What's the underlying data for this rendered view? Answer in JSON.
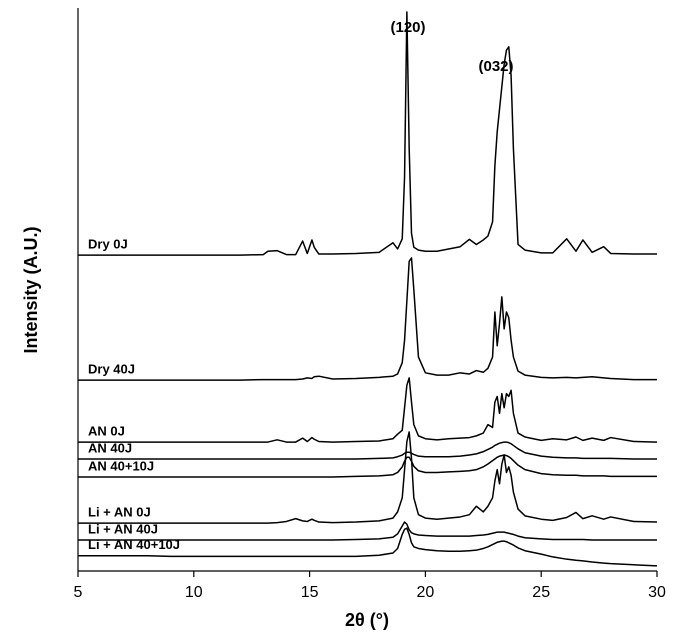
{
  "chart_data": {
    "type": "line",
    "x_label": "2θ (°)",
    "y_label": "Intensity (A.U.)",
    "xlim": [
      5,
      30
    ],
    "xticks": [
      5,
      10,
      15,
      20,
      25,
      30
    ],
    "ylim": [
      0,
      100
    ],
    "annotations": [
      "(120)",
      "(032)"
    ],
    "x": [
      5,
      6,
      7,
      8,
      9,
      10,
      11,
      12,
      13,
      13.2,
      13.6,
      14,
      14.4,
      14.7,
      14.9,
      15.1,
      15.2,
      15.4,
      16,
      17,
      18,
      18.6,
      18.8,
      19.0,
      19.1,
      19.2,
      19.3,
      19.4,
      19.5,
      19.7,
      20,
      20.5,
      21,
      21.5,
      21.9,
      22.2,
      22.5,
      22.7,
      22.9,
      23.0,
      23.1,
      23.2,
      23.3,
      23.4,
      23.5,
      23.6,
      23.7,
      23.8,
      24.0,
      24.3,
      25,
      25.5,
      26.1,
      26.5,
      26.8,
      27.2,
      27.7,
      28,
      29,
      30
    ],
    "series": [
      {
        "name": "Dry 0J",
        "color": "#000000",
        "values": [
          56.1,
          56.1,
          56.1,
          56.1,
          56.1,
          56.1,
          56.1,
          56.1,
          56.2,
          56.8,
          56.9,
          56.2,
          56.2,
          58.6,
          56.4,
          58.8,
          57.5,
          56.3,
          56.3,
          56.4,
          56.6,
          58.3,
          57.2,
          59,
          70,
          99.3,
          75,
          60,
          57.5,
          57,
          56.8,
          56.8,
          57.2,
          57.6,
          58.9,
          58,
          58.8,
          59.5,
          62,
          72,
          78,
          82,
          86,
          90,
          92.5,
          93.1,
          88,
          75,
          58,
          57,
          56.5,
          56.5,
          59,
          56.8,
          58.8,
          56.6,
          57.6,
          56.4,
          56.3,
          56.3
        ]
      },
      {
        "name": "Dry 40J",
        "color": "#000000",
        "values": [
          33.9,
          33.9,
          33.9,
          33.9,
          33.9,
          33.9,
          33.9,
          33.9,
          34.0,
          34,
          34,
          34,
          34,
          34.1,
          34.3,
          34.2,
          34.5,
          34.6,
          34.1,
          34.2,
          34.4,
          34.6,
          35,
          37,
          41,
          48,
          55,
          55.6,
          50,
          38,
          35.2,
          34.8,
          34.8,
          35.2,
          35,
          35.6,
          35.3,
          36,
          38,
          46,
          40,
          44,
          48.7,
          43,
          46,
          45,
          41,
          38,
          35.5,
          34.8,
          34.4,
          34.3,
          34.4,
          34.3,
          34.4,
          34.5,
          34.3,
          34.2,
          34,
          34
        ]
      },
      {
        "name": "AN 0J",
        "color": "#000000",
        "values": [
          22.9,
          22.9,
          22.9,
          22.9,
          22.9,
          22.9,
          22.9,
          22.9,
          22.9,
          22.9,
          23.3,
          22.9,
          22.9,
          23.6,
          23,
          23.7,
          23.4,
          23,
          22.9,
          23,
          23.1,
          23.5,
          24.3,
          25,
          29,
          33,
          34.3,
          30,
          26,
          24,
          23.5,
          23.3,
          23.5,
          23.6,
          23.7,
          24,
          24.5,
          26,
          25.5,
          30,
          31,
          28,
          31.5,
          29,
          31.5,
          31,
          32.1,
          28,
          24.5,
          23.8,
          23.2,
          23.5,
          23.3,
          23.8,
          23.2,
          23.6,
          23.2,
          23.7,
          23,
          22.9
        ]
      },
      {
        "name": "AN 40J",
        "color": "#000000",
        "values": [
          19.9,
          19.9,
          19.9,
          19.9,
          19.9,
          19.9,
          19.9,
          19.9,
          19.9,
          19.9,
          19.9,
          19.9,
          19.9,
          19.9,
          19.9,
          19.9,
          19.9,
          19.9,
          19.9,
          19.9,
          20,
          20.1,
          20.3,
          20.6,
          20.9,
          21.1,
          21.1,
          20.9,
          20.7,
          20.4,
          20.3,
          20.3,
          20.3,
          20.4,
          20.6,
          20.8,
          21.2,
          21.6,
          22,
          22.3,
          22.5,
          22.7,
          22.8,
          22.9,
          22.9,
          22.8,
          22.6,
          22.3,
          21.7,
          21,
          20.4,
          20.2,
          20.1,
          20.1,
          20,
          20,
          20,
          20,
          19.9,
          19.9
        ]
      },
      {
        "name": "AN 40+10J",
        "color": "#000000",
        "values": [
          16.7,
          16.7,
          16.7,
          16.7,
          16.7,
          16.7,
          16.7,
          16.7,
          16.7,
          16.7,
          16.7,
          16.7,
          16.7,
          16.7,
          16.7,
          16.7,
          16.7,
          16.7,
          16.7,
          16.8,
          16.9,
          17.1,
          17.5,
          18.5,
          19.5,
          20.2,
          20.2,
          19.5,
          18.6,
          17.8,
          17.5,
          17.5,
          17.6,
          17.7,
          17.8,
          18,
          18.5,
          19,
          19.6,
          19.9,
          20.2,
          20.4,
          20.5,
          20.6,
          20.5,
          20.3,
          20,
          19.6,
          18.8,
          18,
          17.3,
          17.1,
          17,
          17,
          16.9,
          16.9,
          16.9,
          16.8,
          16.8,
          16.8
        ]
      },
      {
        "name": "Li + AN 0J",
        "color": "#000000",
        "values": [
          8.5,
          8.5,
          8.5,
          8.5,
          8.5,
          8.5,
          8.5,
          8.5,
          8.5,
          8.5,
          8.6,
          8.8,
          9.3,
          8.9,
          8.8,
          9.2,
          9,
          8.7,
          8.6,
          8.7,
          8.9,
          9.4,
          10.5,
          13,
          18,
          23,
          24.7,
          20,
          13,
          10,
          9.4,
          9.2,
          9.4,
          9.6,
          10,
          11.5,
          10.5,
          11.5,
          13,
          16,
          18,
          15.5,
          19,
          20.6,
          17.5,
          18.5,
          17,
          14,
          11,
          9.8,
          9.2,
          9,
          9.5,
          10.4,
          9.3,
          9.8,
          9.2,
          9.6,
          8.8,
          8.7
        ]
      },
      {
        "name": "Li + AN 40J",
        "color": "#000000",
        "values": [
          5.5,
          5.5,
          5.5,
          5.5,
          5.5,
          5.5,
          5.5,
          5.5,
          5.5,
          5.5,
          5.5,
          5.5,
          5.5,
          5.5,
          5.5,
          5.5,
          5.5,
          5.5,
          5.5,
          5.6,
          5.7,
          6,
          6.6,
          8,
          8.7,
          8.3,
          7.3,
          6.8,
          6.6,
          6.4,
          6.3,
          6.2,
          6.2,
          6.2,
          6.2,
          6.3,
          6.4,
          6.5,
          6.7,
          6.8,
          6.9,
          6.9,
          6.9,
          6.9,
          6.8,
          6.7,
          6.6,
          6.5,
          6.2,
          5.9,
          5.7,
          5.6,
          5.6,
          5.6,
          5.6,
          5.5,
          5.5,
          5.5,
          5.5,
          5.5
        ]
      },
      {
        "name": "Li + AN 40+10J",
        "color": "#000000",
        "values": [
          2.7,
          2.7,
          2.7,
          2.7,
          2.6,
          2.6,
          2.6,
          2.6,
          2.6,
          2.6,
          2.6,
          2.6,
          2.6,
          2.6,
          2.6,
          2.6,
          2.6,
          2.6,
          2.6,
          2.6,
          2.8,
          3.2,
          4,
          6.5,
          7.4,
          7.6,
          6.5,
          5,
          4.3,
          4,
          3.8,
          3.6,
          3.5,
          3.5,
          3.6,
          3.7,
          4,
          4.3,
          4.7,
          4.9,
          5.1,
          5.2,
          5.3,
          5.3,
          5.2,
          5,
          4.8,
          4.6,
          4.1,
          3.6,
          3,
          2.5,
          2.1,
          1.9,
          1.8,
          1.6,
          1.4,
          1.3,
          1.1,
          0.9
        ]
      }
    ]
  }
}
